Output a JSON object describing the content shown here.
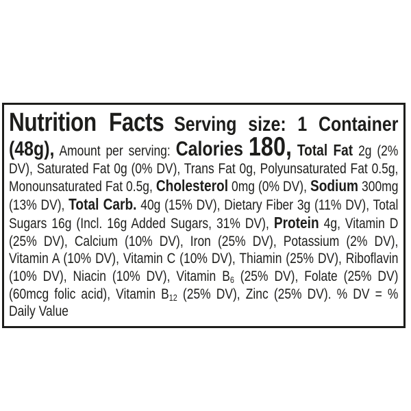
{
  "colors": {
    "background": "#ffffff",
    "label_border": "#1d1d1b",
    "label_text": "#1d1d1b"
  },
  "label": {
    "title": "Nutrition Facts",
    "serving_size": "Serving size: 1 Container (48g),",
    "amount_per_serving": "Amount per serving:",
    "calories_label": "Calories",
    "calories_value": "180,",
    "total_fat_label": "Total Fat",
    "fat_details": "2g (2% DV), Saturated Fat 0g (0% DV), Trans Fat 0g, Polyunsaturated Fat 0.5g, Monounsaturated Fat 0.5g,",
    "cholesterol_label": "Cholesterol",
    "cholesterol_value": "0mg (0% DV),",
    "sodium_label": "Sodium",
    "sodium_value": "300mg (13% DV),",
    "total_carb_label": "Total Carb.",
    "carb_details": "40g (15% DV), Dietary Fiber 3g (11% DV), Total Sugars 16g (Incl. 16g Added Sugars, 31% DV),",
    "protein_label": "Protein",
    "vitamins_part1": "4g, Vitamin D (25% DV), Calcium (10% DV), Iron (25% DV), Potassium (2% DV), Vitamin A (10% DV), Vitamin C (10% DV), Thiamin (25% DV), Riboflavin (10% DV), Niacin (10% DV), Vitamin B",
    "b6_subscript": "6",
    "vitamins_part2": "(25% DV), Folate (25% DV) (60mcg folic acid), Vitamin B",
    "b12_subscript": "12",
    "vitamins_part3": "(25% DV), Zinc (25% DV). % DV = % Daily Value"
  }
}
